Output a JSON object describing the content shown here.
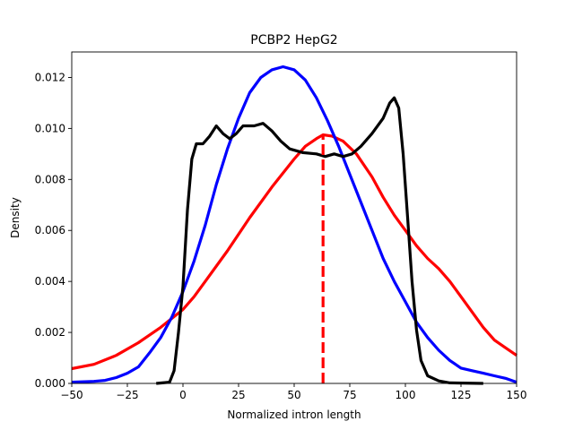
{
  "chart_data": {
    "type": "line",
    "title": "PCBP2 HepG2",
    "xlabel": "Normalized intron length",
    "ylabel": "Density",
    "xlim": [
      -50,
      150
    ],
    "ylim": [
      0,
      0.013
    ],
    "xticks": [
      "−50",
      "−25",
      "0",
      "25",
      "50",
      "75",
      "100",
      "125",
      "150"
    ],
    "yticks": [
      "0.000",
      "0.002",
      "0.004",
      "0.006",
      "0.008",
      "0.010",
      "0.012"
    ],
    "grid": false,
    "series": [
      {
        "color": "#ff0000",
        "style": "solid",
        "points": [
          [
            -50,
            0.00058
          ],
          [
            -40,
            0.00075
          ],
          [
            -30,
            0.0011
          ],
          [
            -20,
            0.0016
          ],
          [
            -10,
            0.0022
          ],
          [
            0,
            0.0029
          ],
          [
            5,
            0.0034
          ],
          [
            10,
            0.004
          ],
          [
            20,
            0.0052
          ],
          [
            30,
            0.0065
          ],
          [
            40,
            0.0077
          ],
          [
            50,
            0.0088
          ],
          [
            55,
            0.0093
          ],
          [
            60,
            0.0096
          ],
          [
            63,
            0.00975
          ],
          [
            67,
            0.0097
          ],
          [
            72,
            0.0095
          ],
          [
            78,
            0.009
          ],
          [
            85,
            0.0081
          ],
          [
            90,
            0.0073
          ],
          [
            95,
            0.0066
          ],
          [
            100,
            0.006
          ],
          [
            105,
            0.0054
          ],
          [
            110,
            0.0049
          ],
          [
            115,
            0.0045
          ],
          [
            120,
            0.004
          ],
          [
            125,
            0.0034
          ],
          [
            130,
            0.0028
          ],
          [
            135,
            0.0022
          ],
          [
            140,
            0.0017
          ],
          [
            145,
            0.0014
          ],
          [
            150,
            0.0011
          ]
        ]
      },
      {
        "color": "#0000ff",
        "style": "solid",
        "points": [
          [
            -50,
            5e-05
          ],
          [
            -40,
            8e-05
          ],
          [
            -35,
            0.00012
          ],
          [
            -30,
            0.00023
          ],
          [
            -25,
            0.0004
          ],
          [
            -20,
            0.00065
          ],
          [
            -15,
            0.0012
          ],
          [
            -10,
            0.0018
          ],
          [
            -5,
            0.0026
          ],
          [
            0,
            0.0036
          ],
          [
            5,
            0.0048
          ],
          [
            10,
            0.0062
          ],
          [
            15,
            0.0078
          ],
          [
            20,
            0.0092
          ],
          [
            25,
            0.0104
          ],
          [
            30,
            0.0114
          ],
          [
            35,
            0.012
          ],
          [
            40,
            0.0123
          ],
          [
            45,
            0.01242
          ],
          [
            50,
            0.0123
          ],
          [
            55,
            0.0119
          ],
          [
            60,
            0.0112
          ],
          [
            65,
            0.0103
          ],
          [
            70,
            0.0093
          ],
          [
            75,
            0.0082
          ],
          [
            80,
            0.0071
          ],
          [
            85,
            0.006
          ],
          [
            90,
            0.0049
          ],
          [
            95,
            0.004
          ],
          [
            100,
            0.0032
          ],
          [
            105,
            0.0024
          ],
          [
            110,
            0.0018
          ],
          [
            115,
            0.0013
          ],
          [
            120,
            0.0009
          ],
          [
            125,
            0.0006
          ],
          [
            130,
            0.0005
          ],
          [
            135,
            0.0004
          ],
          [
            140,
            0.0003
          ],
          [
            145,
            0.0002
          ],
          [
            150,
            5e-05
          ]
        ]
      },
      {
        "color": "#000000",
        "style": "solid",
        "points": [
          [
            -12,
            0
          ],
          [
            -6,
            5e-05
          ],
          [
            -4,
            0.0005
          ],
          [
            -2,
            0.002
          ],
          [
            0,
            0.0038
          ],
          [
            2,
            0.0068
          ],
          [
            4,
            0.0088
          ],
          [
            6,
            0.0094
          ],
          [
            9,
            0.0094
          ],
          [
            12,
            0.0097
          ],
          [
            15,
            0.0101
          ],
          [
            18,
            0.0098
          ],
          [
            21,
            0.0096
          ],
          [
            24,
            0.0098
          ],
          [
            27,
            0.0101
          ],
          [
            32,
            0.0101
          ],
          [
            36,
            0.0102
          ],
          [
            40,
            0.0099
          ],
          [
            44,
            0.0095
          ],
          [
            48,
            0.0092
          ],
          [
            54,
            0.00905
          ],
          [
            60,
            0.009
          ],
          [
            64,
            0.0089
          ],
          [
            68,
            0.009
          ],
          [
            72,
            0.0089
          ],
          [
            76,
            0.009
          ],
          [
            80,
            0.0093
          ],
          [
            85,
            0.0098
          ],
          [
            90,
            0.0104
          ],
          [
            93,
            0.011
          ],
          [
            95,
            0.0112
          ],
          [
            97,
            0.0108
          ],
          [
            99,
            0.009
          ],
          [
            101,
            0.0065
          ],
          [
            103,
            0.004
          ],
          [
            105,
            0.0021
          ],
          [
            107,
            0.0009
          ],
          [
            110,
            0.0003
          ],
          [
            115,
            0.0001
          ],
          [
            120,
            2e-05
          ],
          [
            135,
            0
          ]
        ]
      },
      {
        "color": "#ff0000",
        "style": "dashed",
        "points": [
          [
            63,
            0
          ],
          [
            63,
            0.00975
          ]
        ]
      }
    ]
  }
}
